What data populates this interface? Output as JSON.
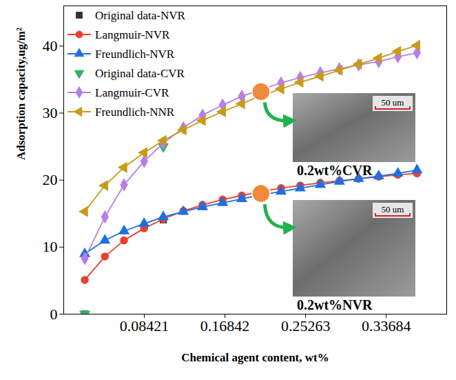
{
  "chart_data": {
    "type": "line",
    "x_label": "Chemical agent content, wt%",
    "y_label": "Adsorption capacity,ug/m²",
    "xlim": [
      0,
      0.4
    ],
    "ylim": [
      0,
      46
    ],
    "xticks": [
      0.08421,
      0.16842,
      0.25263,
      0.33684
    ],
    "yticks": [
      0,
      10,
      20,
      30,
      40
    ],
    "grid": false,
    "legend": "top-left",
    "series": [
      {
        "name": "Original data-NVR",
        "color": "#333333",
        "type": "scatter",
        "marker": "square",
        "line_style": "none",
        "x": [
          0.022,
          0.104
        ],
        "values": [
          0,
          14.1
        ]
      },
      {
        "name": "Langmuir-NVR",
        "color": "#e8412f",
        "type": "line",
        "marker": "circle",
        "line_style": "solid",
        "x": [
          0.022,
          0.043,
          0.063,
          0.084,
          0.104,
          0.125,
          0.145,
          0.166,
          0.186,
          0.206,
          0.227,
          0.247,
          0.268,
          0.288,
          0.308,
          0.329,
          0.349,
          0.369
        ],
        "values": [
          5.1,
          8.6,
          11.0,
          12.8,
          14.2,
          15.4,
          16.3,
          17.1,
          17.7,
          18.3,
          18.8,
          19.2,
          19.6,
          19.9,
          20.2,
          20.5,
          20.8,
          21.0
        ]
      },
      {
        "name": "Freundlich-NVR",
        "color": "#1f6fe0",
        "type": "line",
        "marker": "triangle",
        "line_style": "solid",
        "x": [
          0.022,
          0.043,
          0.063,
          0.084,
          0.104,
          0.125,
          0.145,
          0.166,
          0.186,
          0.206,
          0.227,
          0.247,
          0.268,
          0.288,
          0.308,
          0.329,
          0.349,
          0.369
        ],
        "values": [
          9.0,
          11.0,
          12.4,
          13.5,
          14.5,
          15.3,
          16.0,
          16.6,
          17.2,
          17.8,
          18.3,
          18.8,
          19.3,
          19.8,
          20.2,
          20.6,
          21.0,
          21.5
        ]
      },
      {
        "name": "Original data-CVR",
        "color": "#2db36f",
        "type": "scatter",
        "marker": "triangle-down",
        "line_style": "none",
        "x": [
          0.022,
          0.104
        ],
        "values": [
          0,
          25.0
        ]
      },
      {
        "name": "Langmuir-CVR",
        "color": "#b57fe6",
        "type": "line",
        "marker": "diamond",
        "line_style": "solid",
        "x": [
          0.022,
          0.043,
          0.063,
          0.084,
          0.104,
          0.125,
          0.145,
          0.166,
          0.186,
          0.206,
          0.227,
          0.247,
          0.268,
          0.288,
          0.308,
          0.329,
          0.349,
          0.369
        ],
        "values": [
          8.3,
          14.5,
          19.3,
          22.8,
          25.5,
          27.8,
          29.7,
          31.2,
          32.5,
          33.5,
          34.5,
          35.3,
          36.0,
          36.6,
          37.2,
          37.7,
          38.4,
          39.0
        ]
      },
      {
        "name": "Freundlich-NNR",
        "color": "#c79a1a",
        "type": "line",
        "marker": "triangle-left",
        "line_style": "solid",
        "x": [
          0.022,
          0.043,
          0.063,
          0.084,
          0.104,
          0.125,
          0.145,
          0.166,
          0.186,
          0.206,
          0.227,
          0.247,
          0.268,
          0.288,
          0.308,
          0.329,
          0.349,
          0.369
        ],
        "values": [
          15.3,
          19.2,
          21.9,
          24.1,
          25.9,
          27.5,
          28.9,
          30.2,
          31.4,
          32.6,
          33.6,
          34.6,
          35.5,
          36.4,
          37.3,
          38.2,
          39.2,
          40.1
        ]
      }
    ],
    "callouts": [
      {
        "x": 0.206,
        "y": 33.2,
        "color": "#f08a3a",
        "label": "0.2wt%CVR",
        "scale_bar": "50 um"
      },
      {
        "x": 0.206,
        "y": 18.0,
        "color": "#f08a3a",
        "label": "0.2wt%NVR",
        "scale_bar": "50 um"
      }
    ]
  }
}
